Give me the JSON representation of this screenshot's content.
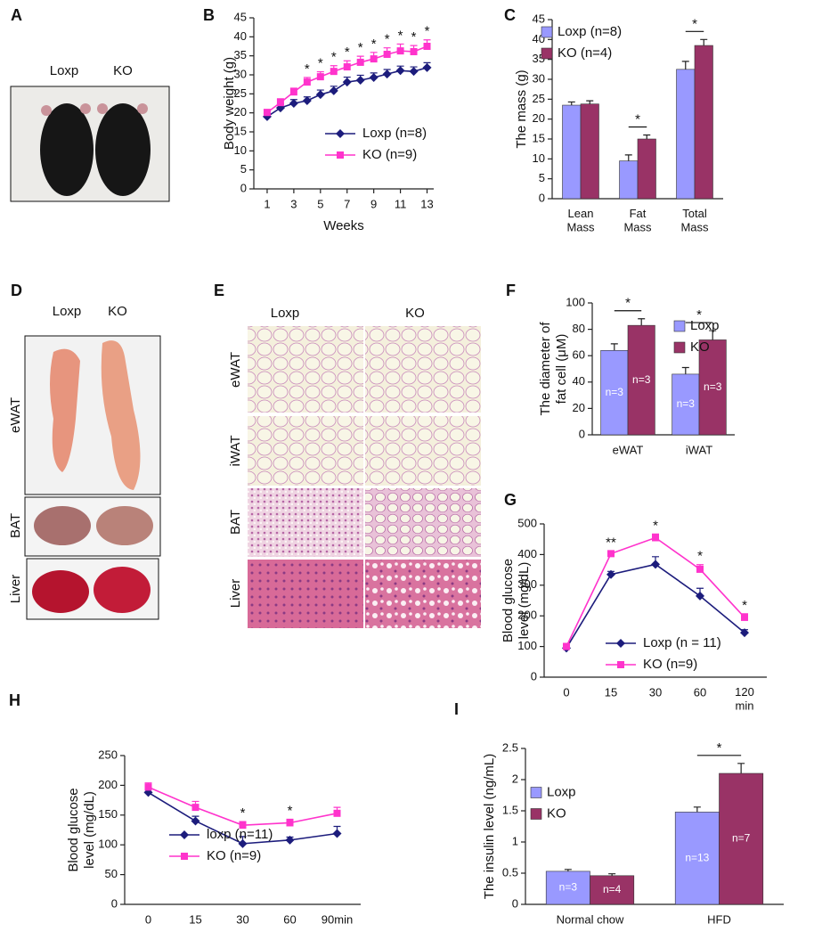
{
  "panels": [
    {
      "label": "A",
      "columns": [
        "Loxp",
        "KO"
      ]
    },
    {
      "label": "D",
      "columns": [
        "Loxp",
        "KO"
      ],
      "rows": [
        "eWAT",
        "BAT",
        "Liver"
      ]
    },
    {
      "label": "E",
      "columns": [
        "Loxp",
        "KO"
      ],
      "rows": [
        "eWAT",
        "iWAT",
        "BAT",
        "Liver"
      ]
    }
  ],
  "chart_data": [
    {
      "panel": "B",
      "type": "line",
      "x": [
        1,
        2,
        3,
        4,
        5,
        6,
        7,
        8,
        9,
        10,
        11,
        12,
        13
      ],
      "xlim": [
        0,
        13.5
      ],
      "xticks": [
        1,
        3,
        5,
        7,
        9,
        11,
        13
      ],
      "xlabel": "Weeks",
      "ylabel": "Body weight (g)",
      "ylim": [
        0,
        45
      ],
      "yticks": [
        0,
        5,
        10,
        15,
        20,
        25,
        30,
        35,
        40,
        45
      ],
      "legend": "lower right",
      "series": [
        {
          "name": "Loxp (n=8)",
          "color": "#1c1c7c",
          "marker": "diamond",
          "values": [
            19,
            21.3,
            22.5,
            23.2,
            24.8,
            25.8,
            28.1,
            28.6,
            29.3,
            30.2,
            31.1,
            30.9,
            31.9
          ],
          "errors": [
            0.8,
            1,
            1,
            1,
            1.2,
            1.2,
            1.3,
            1.3,
            1.2,
            1.2,
            1.2,
            1.2,
            1.3
          ]
        },
        {
          "name": "KO (n=9)",
          "color": "#ff33cc",
          "marker": "square",
          "values": [
            20.1,
            22.7,
            25.5,
            28.1,
            29.5,
            30.9,
            32.1,
            33.3,
            34.2,
            35.4,
            36.3,
            36.1,
            37.5
          ],
          "errors": [
            0.8,
            1,
            1,
            1.2,
            1.3,
            1.5,
            1.6,
            1.6,
            1.7,
            1.7,
            1.8,
            1.6,
            1.7
          ]
        }
      ],
      "annotations": [
        {
          "x": 4,
          "text": "*"
        },
        {
          "x": 5,
          "text": "*"
        },
        {
          "x": 6,
          "text": "*"
        },
        {
          "x": 7,
          "text": "*"
        },
        {
          "x": 8,
          "text": "*"
        },
        {
          "x": 9,
          "text": "*"
        },
        {
          "x": 10,
          "text": "*"
        },
        {
          "x": 11,
          "text": "*"
        },
        {
          "x": 12,
          "text": "*"
        },
        {
          "x": 13,
          "text": "*"
        }
      ]
    },
    {
      "panel": "C",
      "type": "bar",
      "categories": [
        "Lean Mass",
        "Fat Mass",
        "Total Mass"
      ],
      "ylabel": "The mass (g)",
      "ylim": [
        0,
        45
      ],
      "yticks": [
        0,
        5,
        10,
        15,
        20,
        25,
        30,
        35,
        40,
        45
      ],
      "legend": "upper left",
      "series": [
        {
          "name": "Loxp (n=8)",
          "color": "#9999ff",
          "values": [
            23.5,
            9.5,
            32.5
          ],
          "errors": [
            0.8,
            1.5,
            2
          ]
        },
        {
          "name": "KO (n=4)",
          "color": "#993366",
          "values": [
            23.8,
            15,
            38.5
          ],
          "errors": [
            0.8,
            1,
            1.5
          ]
        }
      ],
      "brackets": [
        {
          "category": "Fat Mass",
          "text": "*"
        },
        {
          "category": "Total Mass",
          "text": "*"
        }
      ]
    },
    {
      "panel": "F",
      "type": "bar",
      "categories": [
        "eWAT",
        "iWAT"
      ],
      "ylabel": "The diameter of fat cell (μM)",
      "ylim": [
        0,
        100
      ],
      "yticks": [
        0,
        20,
        40,
        60,
        80,
        100
      ],
      "legend": "upper right",
      "series": [
        {
          "name": "Loxp",
          "color": "#9999ff",
          "values": [
            64,
            46
          ],
          "errors": [
            5,
            5
          ],
          "bar_labels": [
            "n=3",
            "n=3"
          ]
        },
        {
          "name": "KO",
          "color": "#993366",
          "values": [
            83,
            72
          ],
          "errors": [
            5,
            7
          ],
          "bar_labels": [
            "n=3",
            "n=3"
          ]
        }
      ],
      "brackets": [
        {
          "category": "eWAT",
          "text": "*"
        },
        {
          "category": "iWAT",
          "text": "*"
        }
      ]
    },
    {
      "panel": "G",
      "type": "line",
      "categories": [
        "0",
        "15",
        "30",
        "60",
        "120 min"
      ],
      "ylabel": "Blood glucose level (mg/dL)",
      "ylim": [
        0,
        500
      ],
      "yticks": [
        0,
        100,
        200,
        300,
        400,
        500
      ],
      "legend": "lower right",
      "series": [
        {
          "name": "Loxp (n = 11)",
          "color": "#1c1c7c",
          "marker": "diamond",
          "values": [
            95,
            335,
            368,
            265,
            145
          ],
          "errors": [
            8,
            10,
            25,
            25,
            10
          ]
        },
        {
          "name": "KO (n=9)",
          "color": "#ff33cc",
          "marker": "square",
          "values": [
            100,
            403,
            455,
            352,
            195
          ],
          "errors": [
            10,
            8,
            12,
            15,
            12
          ]
        }
      ],
      "annotations": [
        {
          "category": "15",
          "text": "**"
        },
        {
          "category": "30",
          "text": "*"
        },
        {
          "category": "60",
          "text": "*"
        },
        {
          "category": "120 min",
          "text": "*"
        }
      ]
    },
    {
      "panel": "H",
      "type": "line",
      "categories": [
        "0",
        "15",
        "30",
        "60",
        "90min"
      ],
      "ylabel": "Blood glucose level (mg/dL)",
      "ylim": [
        0,
        250
      ],
      "yticks": [
        0,
        50,
        100,
        150,
        200,
        250
      ],
      "legend": "lower left",
      "series": [
        {
          "name": "loxp (n=11)",
          "color": "#1c1c7c",
          "marker": "diamond",
          "values": [
            188,
            140,
            102,
            108,
            119
          ],
          "errors": [
            5,
            8,
            12,
            5,
            12
          ]
        },
        {
          "name": "KO (n=9)",
          "color": "#ff33cc",
          "marker": "square",
          "values": [
            197,
            163,
            133,
            137,
            153
          ],
          "errors": [
            7,
            10,
            6,
            6,
            10
          ]
        }
      ],
      "annotations": [
        {
          "category": "30",
          "text": "*"
        },
        {
          "category": "60",
          "text": "*"
        }
      ]
    },
    {
      "panel": "I",
      "type": "bar",
      "categories": [
        "Normal chow",
        "HFD"
      ],
      "ylabel": "The insulin level (ng/mL)",
      "ylim": [
        0,
        2.5
      ],
      "yticks": [
        0,
        0.5,
        1,
        1.5,
        2,
        2.5
      ],
      "legend": "center left",
      "series": [
        {
          "name": "Loxp",
          "color": "#9999ff",
          "values": [
            0.53,
            1.48
          ],
          "errors": [
            0.03,
            0.08
          ],
          "bar_labels": [
            "n=3",
            "n=13"
          ]
        },
        {
          "name": "KO",
          "color": "#993366",
          "values": [
            0.46,
            2.1
          ],
          "errors": [
            0.03,
            0.16
          ],
          "bar_labels": [
            "n=4",
            "n=7"
          ]
        }
      ],
      "brackets": [
        {
          "category": "HFD",
          "text": "*"
        }
      ]
    }
  ]
}
